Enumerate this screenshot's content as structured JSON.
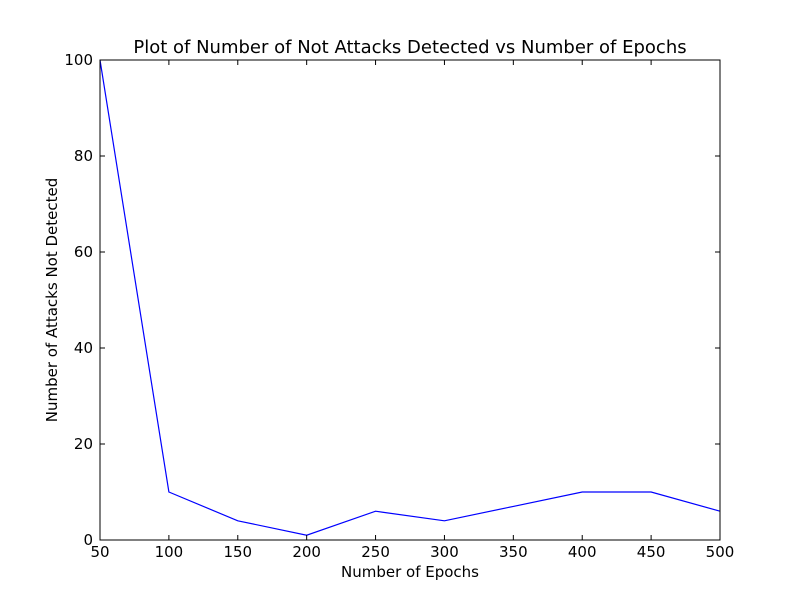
{
  "chart_data": {
    "type": "line",
    "title": "Plot of Number of Not Attacks Detected vs Number of Epochs",
    "xlabel": "Number of Epochs",
    "ylabel": "Number of Attacks Not Detected",
    "xlim": [
      50,
      500
    ],
    "ylim": [
      0,
      100
    ],
    "xticks": [
      50,
      100,
      150,
      200,
      250,
      300,
      350,
      400,
      450,
      500
    ],
    "yticks": [
      0,
      20,
      40,
      60,
      80,
      100
    ],
    "grid": false,
    "series": [
      {
        "color": "#0000ff",
        "x": [
          50,
          100,
          150,
          200,
          250,
          300,
          350,
          400,
          450,
          500
        ],
        "y": [
          100,
          10,
          4,
          1,
          6,
          4,
          7,
          10,
          10,
          6
        ]
      }
    ]
  }
}
